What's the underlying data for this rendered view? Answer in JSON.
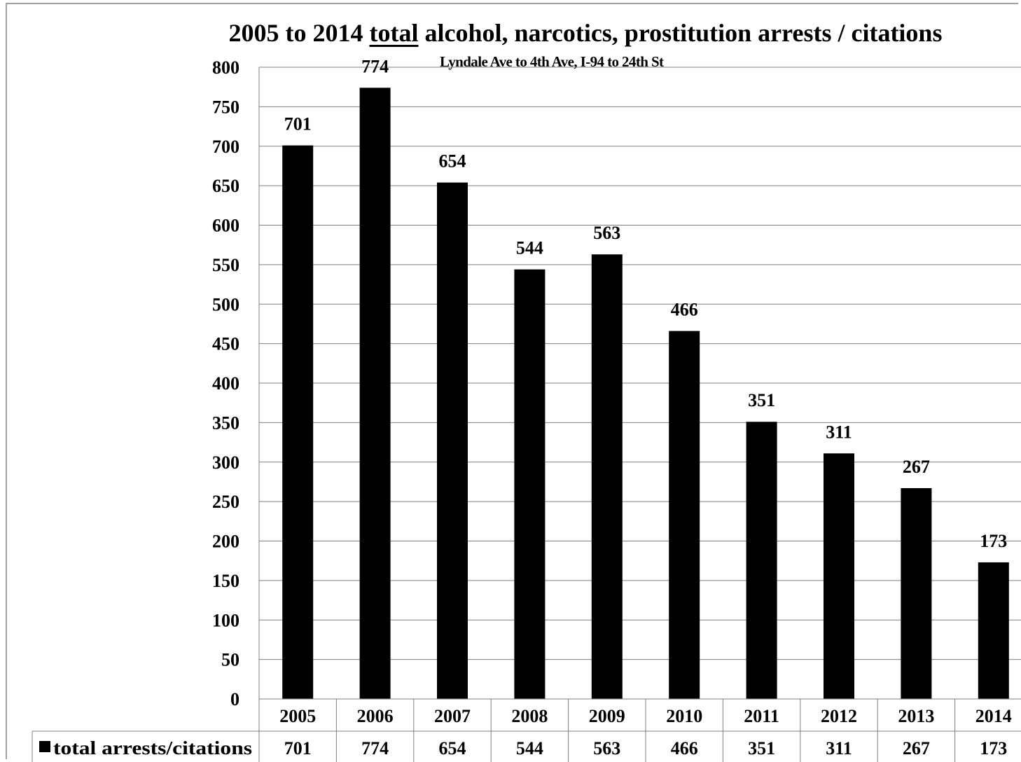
{
  "chart_data": {
    "type": "bar",
    "title_parts": [
      {
        "text": "2005 to 2014 ",
        "underline": false
      },
      {
        "text": "total",
        "underline": true
      },
      {
        "text": " alcohol, narcotics, prostitution arrests / citations",
        "underline": false
      }
    ],
    "subtitle": "Lyndale Ave to 4th Ave, I-94 to 24th St",
    "categories": [
      "2005",
      "2006",
      "2007",
      "2008",
      "2009",
      "2010",
      "2011",
      "2012",
      "2013",
      "2014"
    ],
    "series": [
      {
        "name": "total arrests/citations",
        "values": [
          701,
          774,
          654,
          544,
          563,
          466,
          351,
          311,
          267,
          173
        ],
        "color": "#000000"
      }
    ],
    "ylim": [
      0,
      800
    ],
    "yticks": [
      0,
      50,
      100,
      150,
      200,
      250,
      300,
      350,
      400,
      450,
      500,
      550,
      600,
      650,
      700,
      750,
      800
    ],
    "grid": true,
    "data_labels": true,
    "legend": "data-table",
    "data_table": true
  }
}
